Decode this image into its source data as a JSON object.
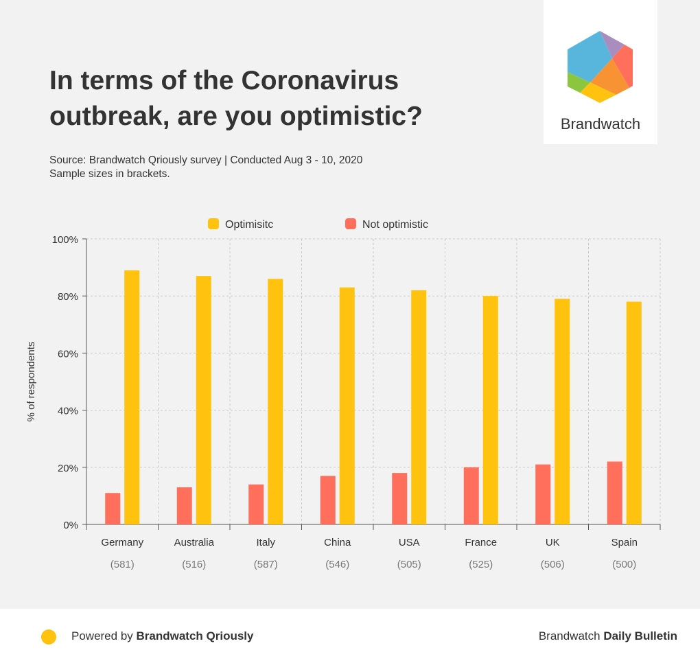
{
  "title": "In terms of the Coronavirus outbreak, are you optimistic?",
  "source_line1": "Source: Brandwatch Qriously survey | Conducted Aug 3 - 10, 2020",
  "source_line2": "Sample sizes in brackets.",
  "logo_text": "Brandwatch",
  "footer": {
    "powered_prefix": "Powered by ",
    "powered_brand": "Brandwatch Qriously",
    "right_prefix": "Brandwatch ",
    "right_bold": "Daily Bulletin"
  },
  "colors": {
    "optimistic": "#ffc20e",
    "not_optimistic": "#ff6f5b"
  },
  "chart_data": {
    "type": "bar",
    "categories": [
      "Germany",
      "Australia",
      "Italy",
      "China",
      "USA",
      "France",
      "UK",
      "Spain"
    ],
    "sample_sizes": [
      "(581)",
      "(516)",
      "(587)",
      "(546)",
      "(505)",
      "(525)",
      "(506)",
      "(500)"
    ],
    "series": [
      {
        "name": "Not optimistic",
        "values": [
          11,
          13,
          14,
          17,
          18,
          20,
          21,
          22
        ]
      },
      {
        "name": "Optimisitc",
        "values": [
          89,
          87,
          86,
          83,
          82,
          80,
          79,
          78
        ]
      }
    ],
    "legend_order": [
      "Optimisitc",
      "Not optimistic"
    ],
    "ylabel": "% of respondents",
    "ylim": [
      0,
      100
    ],
    "yticks": [
      "0%",
      "20%",
      "40%",
      "60%",
      "80%",
      "100%"
    ],
    "grid": true,
    "legend": "top"
  }
}
